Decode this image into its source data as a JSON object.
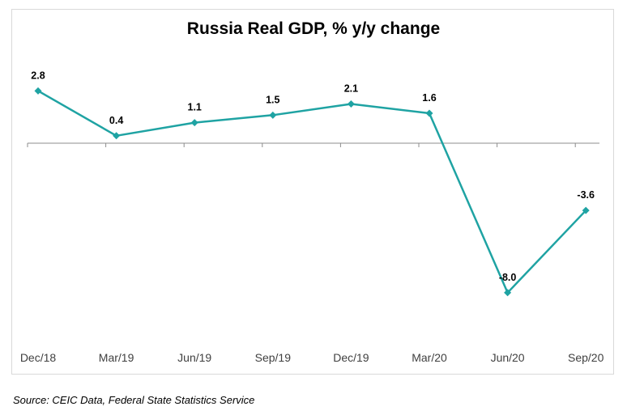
{
  "chart_data": {
    "type": "line",
    "title": "Russia Real GDP, % y/y change",
    "xlabel": "",
    "ylabel": "",
    "categories": [
      "Dec/18",
      "Mar/19",
      "Jun/19",
      "Sep/19",
      "Dec/19",
      "Mar/20",
      "Jun/20",
      "Sep/20"
    ],
    "series": [
      {
        "values": [
          2.8,
          0.4,
          1.1,
          1.5,
          2.1,
          1.6,
          -8.0,
          -3.6
        ]
      }
    ],
    "data_labels": [
      "2.8",
      "0.4",
      "1.1",
      "1.5",
      "2.1",
      "1.6",
      "-8.0",
      "-3.6"
    ],
    "ylim": [
      -11,
      3.5
    ],
    "grid": false,
    "legend": "none",
    "colors": {
      "line": "#1fa3a3",
      "axis": "#8c8c8c",
      "frame": "#d9d9d9"
    }
  },
  "source": "Source: CEIC Data, Federal State Statistics Service"
}
